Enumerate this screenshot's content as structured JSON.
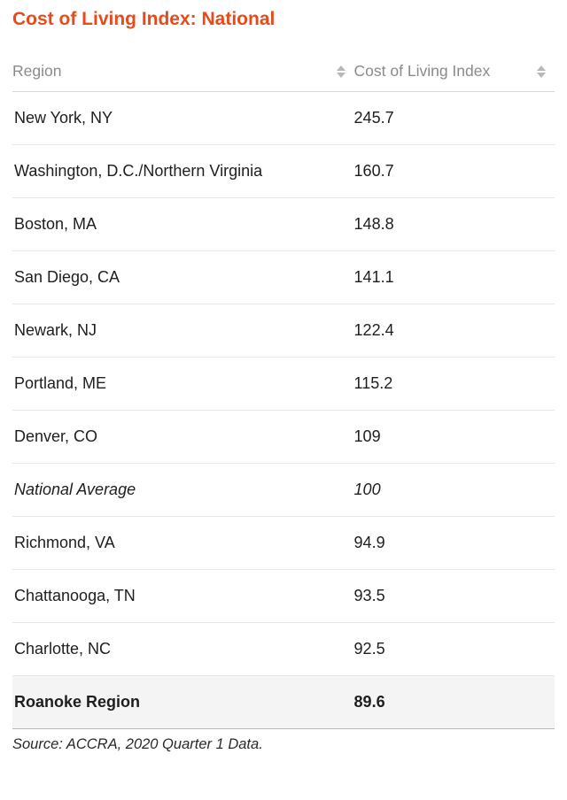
{
  "title": "Cost of Living Index: National",
  "colors": {
    "title": "#e84a1c",
    "header_text": "#8a8a8a",
    "row_border": "#e7e7e7",
    "header_border": "#d8d8d8",
    "shaded_bg": "#f4f4f4",
    "background": "#ffffff",
    "body_text": "#1e1e1e"
  },
  "table": {
    "columns": [
      {
        "key": "region",
        "label": "Region",
        "sortable": true
      },
      {
        "key": "value",
        "label": "Cost of Living Index",
        "sortable": true
      }
    ],
    "rows": [
      {
        "region": "New York, NY",
        "value": "245.7"
      },
      {
        "region": "Washington, D.C./Northern Virginia",
        "value": "160.7"
      },
      {
        "region": "Boston, MA",
        "value": "148.8"
      },
      {
        "region": "San Diego, CA",
        "value": "141.1"
      },
      {
        "region": "Newark, NJ",
        "value": "122.4"
      },
      {
        "region": "Portland, ME",
        "value": "115.2"
      },
      {
        "region": "Denver, CO",
        "value": "109"
      },
      {
        "region": "National Average",
        "value": "100",
        "style": "italic"
      },
      {
        "region": "Richmond, VA",
        "value": "94.9"
      },
      {
        "region": "Chattanooga, TN",
        "value": "93.5"
      },
      {
        "region": "Charlotte, NC",
        "value": "92.5"
      },
      {
        "region": "Roanoke Region",
        "value": "89.6",
        "style": "bold",
        "shaded": true
      }
    ]
  },
  "source": "Source: ACCRA, 2020 Quarter 1 Data."
}
